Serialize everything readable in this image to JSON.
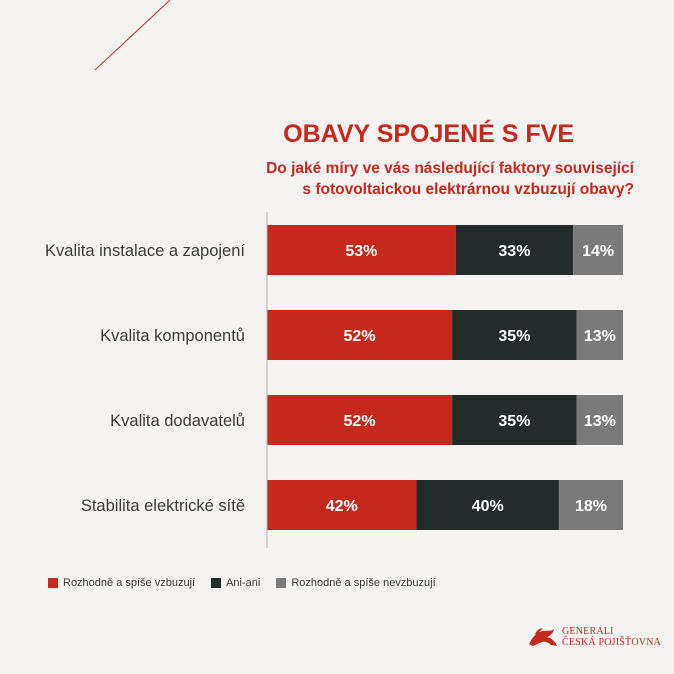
{
  "title": "OBAVY SPOJENÉ S FVE",
  "subtitle_line1": "Do jaké míry ve vás následující faktory související",
  "subtitle_line2": "s fotovoltaickou elektrárnou vzbuzují obavy?",
  "colors": {
    "accent": "#c5281c",
    "series": [
      "#c5281c",
      "#232b2b",
      "#7b7a7a"
    ]
  },
  "legend": [
    {
      "label": "Rozhodně a spíše vzbuzují",
      "color": "#c5281c"
    },
    {
      "label": "Ani-ani",
      "color": "#232b2b"
    },
    {
      "label": "Rozhodně a spíše nevzbuzují",
      "color": "#7b7a7a"
    }
  ],
  "logo": {
    "line1": "GENERALI",
    "line2": "ČESKÁ POJIŠŤOVNA",
    "icon": "lion-logo-icon"
  },
  "chart_data": {
    "type": "bar",
    "orientation": "horizontal",
    "stacked": true,
    "percent": true,
    "categories": [
      "Kvalita instalace a zapojení",
      "Kvalita komponentů",
      "Kvalita dodavatelů",
      "Stabilita elektrické sítě"
    ],
    "series": [
      {
        "name": "Rozhodně a spíše vzbuzují",
        "values": [
          53,
          52,
          52,
          42
        ]
      },
      {
        "name": "Ani-ani",
        "values": [
          33,
          35,
          35,
          40
        ]
      },
      {
        "name": "Rozhodně a spíše nevzbuzují",
        "values": [
          14,
          13,
          13,
          18
        ]
      }
    ],
    "data_labels": [
      [
        "53%",
        "33%",
        "14%"
      ],
      [
        "52%",
        "35%",
        "13%"
      ],
      [
        "52%",
        "35%",
        "13%"
      ],
      [
        "42%",
        "40%",
        "18%"
      ]
    ],
    "xlim": [
      0,
      100
    ],
    "legend_position": "bottom-left",
    "grid": false
  }
}
